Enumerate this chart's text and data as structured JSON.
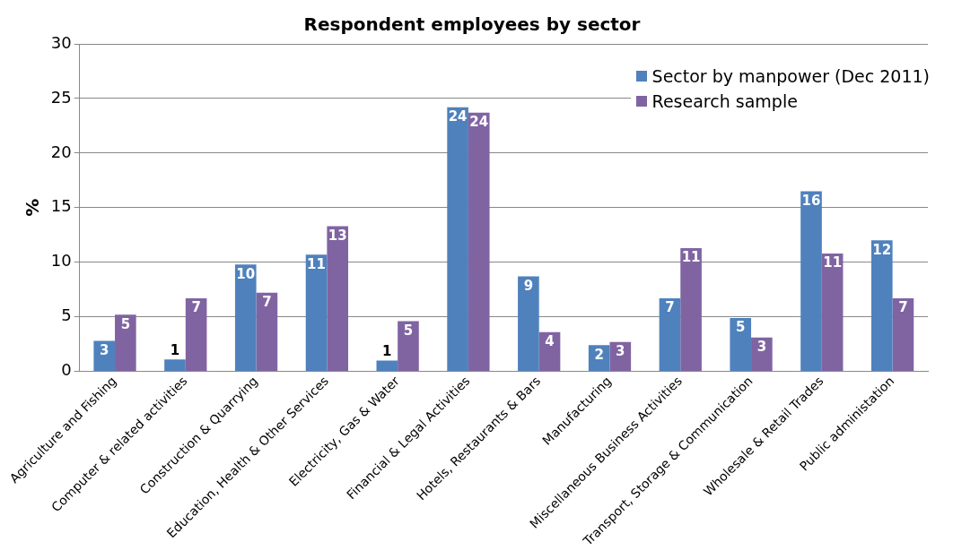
{
  "chart_data": {
    "type": "bar",
    "title": "Respondent employees by sector",
    "ylabel": "%",
    "categories": [
      "Agriculture and Fishing",
      "Computer & related activities",
      "Construction & Quarrying",
      "Education, Health & Other Services",
      "Electricity, Gas & Water",
      "Financial & Legal Activities",
      "Hotels, Restaurants & Bars",
      "Manufacturing",
      "Miscellaneous Business Activities",
      "Transport, Storage & Communication",
      "Wholesale & Retail Trades",
      "Public administation"
    ],
    "series": [
      {
        "name": "Sector by manpower (Dec 2011)",
        "color": "#4f81bd",
        "values": [
          2.8,
          1.1,
          9.8,
          10.7,
          1.0,
          24.2,
          8.7,
          2.4,
          6.7,
          4.9,
          16.5,
          12.0
        ],
        "value_labels": [
          "3",
          "1",
          "10",
          "11",
          "1",
          "24",
          "9",
          "2",
          "7",
          "5",
          "16",
          "12"
        ]
      },
      {
        "name": "Research sample",
        "color": "#8064a2",
        "values": [
          5.2,
          6.7,
          7.2,
          13.3,
          4.6,
          23.7,
          3.6,
          2.7,
          11.3,
          3.1,
          10.8,
          6.7
        ],
        "value_labels": [
          "5",
          "7",
          "7",
          "13",
          "5",
          "24",
          "4",
          "3",
          "11",
          "3",
          "11",
          "7"
        ]
      }
    ],
    "ylim": [
      0,
      30
    ],
    "yticks": [
      0,
      5,
      10,
      15,
      20,
      25,
      30
    ],
    "grid": "y",
    "legend": "top right"
  }
}
